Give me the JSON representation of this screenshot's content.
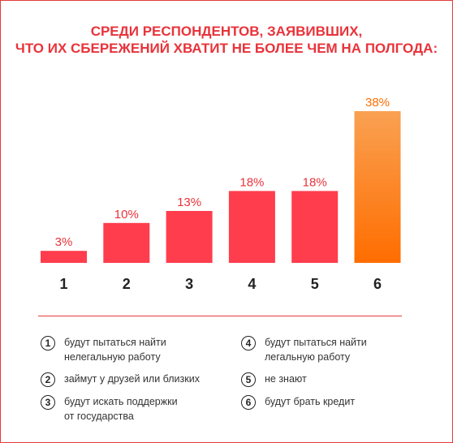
{
  "title": [
    "СРЕДИ РЕСПОНДЕНТОВ, ЗАЯВИВШИХ,",
    "ЧТО ИХ СБЕРЕЖЕНИЙ ХВАТИТ НЕ БОЛЕЕ  ЧЕМ НА ПОЛГОДА:"
  ],
  "colors": {
    "accent": "#e8333a",
    "bar": "#ff3d4d",
    "highlight_top": "#f9a152",
    "highlight_bottom": "#ff6d00"
  },
  "chart_data": {
    "type": "bar",
    "categories": [
      "1",
      "2",
      "3",
      "4",
      "5",
      "6"
    ],
    "values": [
      3,
      10,
      13,
      18,
      18,
      38
    ],
    "value_labels": [
      "3%",
      "10%",
      "13%",
      "18%",
      "18%",
      "38%"
    ],
    "unit": "%",
    "highlight_index": 5,
    "ylim": [
      0,
      38
    ],
    "grid": false,
    "legend_position": "bottom"
  },
  "legend": [
    {
      "num": "1",
      "text": "будут пытаться найти\nнелегальную работу"
    },
    {
      "num": "2",
      "text": "займут у друзей или близких"
    },
    {
      "num": "3",
      "text": "будут искать поддержки\nот государства"
    },
    {
      "num": "4",
      "text": "будут пытаться найти\nлегальную работу"
    },
    {
      "num": "5",
      "text": "не знают"
    },
    {
      "num": "6",
      "text": "будут брать кредит"
    }
  ]
}
